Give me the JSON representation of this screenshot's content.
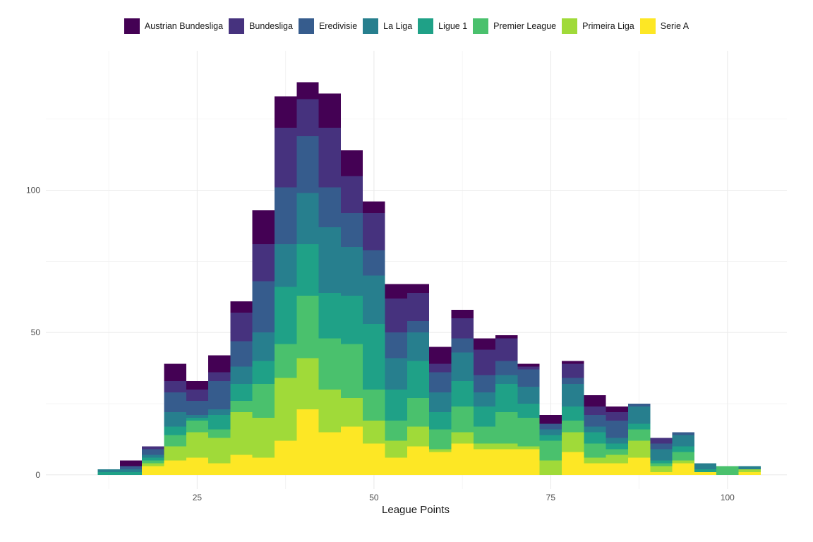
{
  "chart_data": {
    "type": "bar",
    "subtype": "stacked-histogram",
    "title": "",
    "xlabel": "League Points",
    "ylabel": "",
    "xlim": [
      3.6,
      108.4
    ],
    "ylim": [
      -5,
      149
    ],
    "x_ticks": [
      25,
      50,
      75,
      100
    ],
    "y_ticks": [
      0,
      50,
      100
    ],
    "grid": true,
    "legend_position": "top",
    "bin_width": 3.125,
    "bin_centers": [
      12.5,
      15.625,
      18.75,
      21.875,
      25,
      28.125,
      31.25,
      34.375,
      37.5,
      40.625,
      43.75,
      46.875,
      50,
      53.125,
      56.25,
      59.375,
      62.5,
      65.625,
      68.75,
      71.875,
      75,
      78.125,
      81.25,
      84.375,
      87.5,
      90.625,
      93.75,
      96.875,
      100,
      103.125
    ],
    "series": [
      {
        "name": "Serie A",
        "color": "#FDE725",
        "values": [
          0,
          0,
          3,
          5,
          6,
          4,
          7,
          6,
          12,
          23,
          15,
          17,
          11,
          6,
          10,
          8,
          11,
          9,
          9,
          9,
          0,
          8,
          4,
          4,
          6,
          1,
          4,
          1,
          0,
          1
        ]
      },
      {
        "name": "Primeira Liga",
        "color": "#A0DA39",
        "values": [
          0,
          0,
          1,
          5,
          9,
          9,
          15,
          14,
          22,
          18,
          15,
          10,
          8,
          6,
          7,
          1,
          4,
          2,
          2,
          1,
          5,
          7,
          2,
          3,
          6,
          2,
          1,
          0,
          0,
          1
        ]
      },
      {
        "name": "Premier League",
        "color": "#4AC16D",
        "values": [
          0,
          0,
          1,
          4,
          4,
          3,
          4,
          12,
          12,
          22,
          18,
          19,
          11,
          7,
          10,
          7,
          9,
          6,
          11,
          10,
          7,
          4,
          5,
          2,
          4,
          1,
          3,
          0,
          3,
          0
        ]
      },
      {
        "name": "Ligue 1",
        "color": "#1FA187",
        "values": [
          1,
          1,
          1,
          3,
          1,
          5,
          6,
          8,
          20,
          18,
          16,
          17,
          23,
          11,
          13,
          6,
          9,
          7,
          10,
          5,
          2,
          5,
          4,
          2,
          2,
          1,
          2,
          1,
          0,
          0
        ]
      },
      {
        "name": "La Liga",
        "color": "#277F8E",
        "values": [
          1,
          1,
          1,
          5,
          1,
          2,
          6,
          10,
          15,
          18,
          23,
          17,
          17,
          11,
          10,
          7,
          10,
          5,
          3,
          6,
          2,
          8,
          2,
          2,
          6,
          4,
          4,
          2,
          0,
          1
        ]
      },
      {
        "name": "Eredivisie",
        "color": "#365C8D",
        "values": [
          0,
          1,
          2,
          7,
          5,
          10,
          9,
          18,
          20,
          20,
          14,
          12,
          9,
          9,
          4,
          7,
          5,
          6,
          5,
          6,
          2,
          2,
          4,
          6,
          1,
          2,
          1,
          0,
          0,
          0
        ]
      },
      {
        "name": "Bundesliga",
        "color": "#46327E",
        "values": [
          0,
          0,
          1,
          4,
          4,
          3,
          10,
          13,
          21,
          13,
          21,
          13,
          13,
          12,
          10,
          3,
          7,
          9,
          8,
          1,
          0,
          5,
          3,
          3,
          0,
          2,
          0,
          0,
          0,
          0
        ]
      },
      {
        "name": "Austrian Bundesliga",
        "color": "#440154",
        "values": [
          0,
          2,
          0,
          6,
          3,
          6,
          4,
          12,
          11,
          6,
          12,
          9,
          4,
          5,
          3,
          6,
          3,
          4,
          1,
          1,
          3,
          1,
          4,
          2,
          0,
          0,
          0,
          0,
          0,
          0
        ]
      }
    ]
  }
}
